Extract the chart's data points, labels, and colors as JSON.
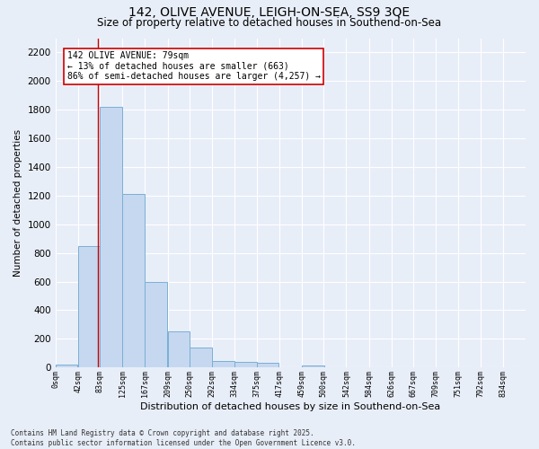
{
  "title_line1": "142, OLIVE AVENUE, LEIGH-ON-SEA, SS9 3QE",
  "title_line2": "Size of property relative to detached houses in Southend-on-Sea",
  "xlabel": "Distribution of detached houses by size in Southend-on-Sea",
  "ylabel": "Number of detached properties",
  "footnote": "Contains HM Land Registry data © Crown copyright and database right 2025.\nContains public sector information licensed under the Open Government Licence v3.0.",
  "bar_left_edges": [
    0,
    42,
    83,
    125,
    167,
    209,
    250,
    292,
    334,
    375,
    417,
    459,
    500,
    542,
    584,
    626,
    667,
    709,
    751,
    792
  ],
  "bar_heights": [
    20,
    845,
    1820,
    1210,
    600,
    255,
    140,
    45,
    40,
    30,
    0,
    15,
    0,
    0,
    0,
    0,
    0,
    0,
    0,
    0
  ],
  "bin_width": 41.5,
  "tick_labels": [
    "0sqm",
    "42sqm",
    "83sqm",
    "125sqm",
    "167sqm",
    "209sqm",
    "250sqm",
    "292sqm",
    "334sqm",
    "375sqm",
    "417sqm",
    "459sqm",
    "500sqm",
    "542sqm",
    "584sqm",
    "626sqm",
    "667sqm",
    "709sqm",
    "751sqm",
    "792sqm",
    "834sqm"
  ],
  "bar_color": "#c5d8f0",
  "bar_edge_color": "#7aafd4",
  "background_color": "#e8eef8",
  "grid_color": "#ffffff",
  "vline_x": 79,
  "vline_color": "#cc0000",
  "annotation_text": "142 OLIVE AVENUE: 79sqm\n← 13% of detached houses are smaller (663)\n86% of semi-detached houses are larger (4,257) →",
  "annotation_box_color": "#ffffff",
  "annotation_box_edge_color": "#cc0000",
  "ylim": [
    0,
    2300
  ],
  "yticks": [
    0,
    200,
    400,
    600,
    800,
    1000,
    1200,
    1400,
    1600,
    1800,
    2000,
    2200
  ],
  "xlim_right": 876,
  "tick_positions": [
    0,
    42,
    83,
    125,
    167,
    209,
    250,
    292,
    334,
    375,
    417,
    459,
    500,
    542,
    584,
    626,
    667,
    709,
    751,
    792,
    834
  ]
}
